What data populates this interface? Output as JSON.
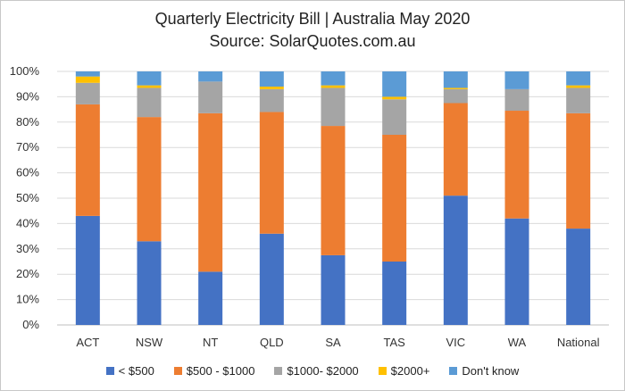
{
  "chart_data": {
    "type": "bar",
    "stacked": true,
    "title": "Quarterly Electricity Bill | Australia May 2020",
    "subtitle": "Source: SolarQuotes.com.au",
    "categories": [
      "ACT",
      "NSW",
      "NT",
      "QLD",
      "SA",
      "TAS",
      "VIC",
      "WA",
      "National"
    ],
    "ylim": [
      0,
      100
    ],
    "yticks": [
      "0%",
      "10%",
      "20%",
      "30%",
      "40%",
      "50%",
      "60%",
      "70%",
      "80%",
      "90%",
      "100%"
    ],
    "grid": true,
    "legend_position": "bottom",
    "series": [
      {
        "name": "< $500",
        "color": "#4472C4",
        "values": [
          43,
          33,
          21,
          36,
          27.5,
          25,
          51,
          42,
          38
        ]
      },
      {
        "name": "$500 - $1000",
        "color": "#ED7D31",
        "values": [
          44,
          49,
          62.5,
          48,
          51,
          50,
          36.5,
          42.5,
          45.5
        ]
      },
      {
        "name": "$1000- $2000",
        "color": "#A5A5A5",
        "values": [
          8.5,
          11.5,
          12.5,
          9,
          15,
          14,
          5.5,
          8.5,
          10
        ]
      },
      {
        "name": "$2000+",
        "color": "#FFC000",
        "values": [
          2.5,
          1,
          0,
          1,
          1,
          1,
          0.5,
          0,
          1
        ]
      },
      {
        "name": "Don't know",
        "color": "#5B9BD5",
        "values": [
          2,
          5.5,
          4,
          6,
          5.5,
          10,
          6.5,
          7,
          5.5
        ]
      }
    ]
  }
}
